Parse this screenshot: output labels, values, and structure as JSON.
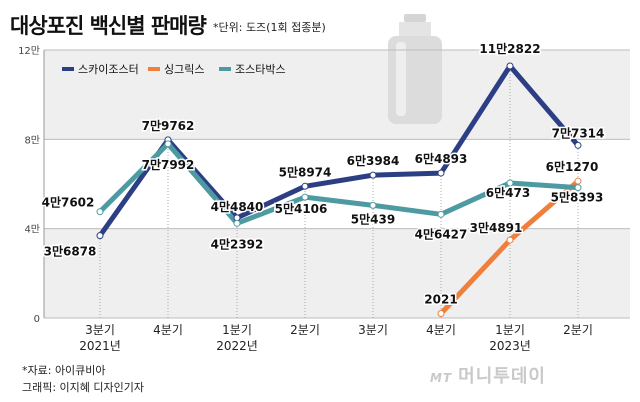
{
  "title": "대상포진 백신별 판매량",
  "unit_note": "*단위: 도즈(1회 접종분)",
  "source": "*자료: 아이큐비아",
  "credit": "그래픽: 이지혜 디자인기자",
  "brand": {
    "prefix": "MT",
    "name": "머니투데이"
  },
  "chart_data": {
    "type": "line",
    "title": "대상포진 백신별 판매량",
    "categories": [
      "3분기",
      "4분기",
      "1분기",
      "2분기",
      "3분기",
      "4분기",
      "1분기",
      "2분기"
    ],
    "year_labels": [
      {
        "index": 0,
        "text": "2021년"
      },
      {
        "index": 2,
        "text": "2022년"
      },
      {
        "index": 6,
        "text": "2023년"
      }
    ],
    "yticks": [
      {
        "value": 0,
        "label": "0"
      },
      {
        "value": 40000,
        "label": "4만"
      },
      {
        "value": 80000,
        "label": "8만"
      },
      {
        "value": 120000,
        "label": "12만"
      }
    ],
    "ylim": [
      0,
      120000
    ],
    "series": [
      {
        "name": "스카이조스터",
        "color": "#2c3e84",
        "values": [
          36878,
          79762,
          44840,
          58974,
          63984,
          64893,
          112822,
          77314
        ],
        "labels": [
          "3만6878",
          "7만9762",
          "4만4840",
          "5만8974",
          "6만3984",
          "6만4893",
          "11만2822",
          "7만7314"
        ]
      },
      {
        "name": "싱그릭스",
        "color": "#f07f3c",
        "start_index": 5,
        "values": [
          null,
          null,
          null,
          null,
          null,
          2021,
          34891,
          61270
        ],
        "labels": [
          "",
          "",
          "",
          "",
          "",
          "2021",
          "3만4891",
          "6만1270"
        ]
      },
      {
        "name": "조스타박스",
        "color": "#4e9aa2",
        "values": [
          47602,
          77992,
          42392,
          54106,
          50439,
          46427,
          60473,
          58393
        ],
        "labels": [
          "4만7602",
          "7만7992",
          "4만2392",
          "5만4106",
          "5만439",
          "4만6427",
          "6만473",
          "5만8393"
        ]
      }
    ]
  }
}
